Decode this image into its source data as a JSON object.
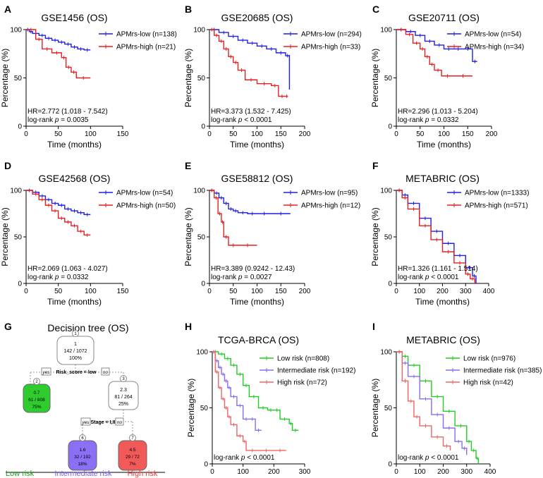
{
  "colors": {
    "low": "#1f1fe6",
    "high": "#e61f1f",
    "tcga_low": "#22cc22",
    "tcga_mid": "#8b6cf0",
    "tcga_high": "#f06464",
    "node_green": "#2ecc2e",
    "node_purple": "#8b70f5",
    "node_red": "#f25a5a",
    "node_white": "#ffffff"
  },
  "chart_data": [
    {
      "panel": "A",
      "type": "line",
      "title": "GSE1456 (OS)",
      "xlabel": "Time (months)",
      "ylabel": "Percentage (%)",
      "xlim": [
        0,
        150
      ],
      "xticks": [
        0,
        50,
        100,
        150
      ],
      "ylim": [
        0,
        100
      ],
      "yticks": [
        0,
        50,
        100
      ],
      "annotation": [
        "HR=2.772 (1.018 - 7.542)",
        "log-rank p = 0.0035"
      ],
      "series": [
        {
          "name": "APMrs-low (n=138)",
          "color": "#1f1fe6",
          "x": [
            0,
            5,
            10,
            20,
            30,
            40,
            50,
            60,
            70,
            80,
            90,
            100
          ],
          "y": [
            100,
            98,
            96,
            94,
            91,
            89,
            87,
            85,
            82,
            80,
            79,
            79
          ]
        },
        {
          "name": "APMrs-high (n=21)",
          "color": "#e61f1f",
          "x": [
            0,
            15,
            25,
            40,
            55,
            62,
            70,
            78,
            100
          ],
          "y": [
            100,
            90,
            80,
            76,
            71,
            61,
            56,
            50,
            50
          ]
        }
      ]
    },
    {
      "panel": "B",
      "type": "line",
      "title": "GSE20685 (OS)",
      "xlabel": "Time (months)",
      "ylabel": "Percentage (%)",
      "xlim": [
        0,
        200
      ],
      "xticks": [
        0,
        50,
        100,
        150,
        200
      ],
      "ylim": [
        0,
        100
      ],
      "yticks": [
        0,
        50,
        100
      ],
      "annotation": [
        "HR=3.373 (1.532 - 7.425)",
        "log-rank p < 0.0001"
      ],
      "series": [
        {
          "name": "APMrs-low (n=294)",
          "color": "#1f1fe6",
          "x": [
            0,
            20,
            40,
            60,
            80,
            100,
            120,
            140,
            160,
            168,
            168
          ],
          "y": [
            100,
            97,
            93,
            89,
            86,
            83,
            80,
            76,
            73,
            72,
            38
          ]
        },
        {
          "name": "APMrs-high (n=33)",
          "color": "#e61f1f",
          "x": [
            0,
            10,
            20,
            30,
            40,
            50,
            60,
            75,
            100,
            130,
            145,
            160,
            165
          ],
          "y": [
            100,
            94,
            88,
            80,
            72,
            66,
            58,
            48,
            44,
            42,
            31,
            31,
            31
          ]
        }
      ]
    },
    {
      "panel": "C",
      "type": "line",
      "title": "GSE20711 (OS)",
      "xlabel": "Time (months)",
      "ylabel": "Percentage (%)",
      "xlim": [
        0,
        200
      ],
      "xticks": [
        0,
        50,
        100,
        150,
        200
      ],
      "ylim": [
        0,
        100
      ],
      "yticks": [
        0,
        50,
        100
      ],
      "annotation": [
        "HR=2.296 (1.013 - 5.204)",
        "log-rank p = 0.0332"
      ],
      "series": [
        {
          "name": "APMrs-low (n=54)",
          "color": "#1f1fe6",
          "x": [
            0,
            20,
            40,
            60,
            80,
            100,
            120,
            140,
            160,
            170
          ],
          "y": [
            100,
            98,
            94,
            88,
            84,
            80,
            80,
            80,
            67,
            67
          ]
        },
        {
          "name": "APMrs-high (n=34)",
          "color": "#e61f1f",
          "x": [
            0,
            20,
            35,
            50,
            60,
            70,
            80,
            95,
            120,
            160
          ],
          "y": [
            100,
            95,
            86,
            80,
            72,
            64,
            58,
            52,
            52,
            52
          ]
        }
      ]
    },
    {
      "panel": "D",
      "type": "line",
      "title": "GSE42568 (OS)",
      "xlabel": "Time (months)",
      "ylabel": "Percentage (%)",
      "xlim": [
        0,
        150
      ],
      "xticks": [
        0,
        50,
        100,
        150
      ],
      "ylim": [
        0,
        100
      ],
      "yticks": [
        0,
        50,
        100
      ],
      "annotation": [
        "HR=2.069 (1.063 - 4.027)",
        "log-rank p = 0.0332"
      ],
      "series": [
        {
          "name": "APMrs-low (n=54)",
          "color": "#1f1fe6",
          "x": [
            0,
            10,
            20,
            30,
            40,
            50,
            60,
            70,
            80,
            90,
            100
          ],
          "y": [
            100,
            98,
            94,
            90,
            86,
            84,
            80,
            78,
            76,
            74,
            74
          ]
        },
        {
          "name": "APMrs-high (n=50)",
          "color": "#e61f1f",
          "x": [
            0,
            10,
            20,
            30,
            40,
            50,
            60,
            70,
            80,
            90,
            100
          ],
          "y": [
            100,
            96,
            90,
            84,
            78,
            70,
            66,
            62,
            56,
            52,
            52
          ]
        }
      ]
    },
    {
      "panel": "E",
      "type": "line",
      "title": "GSE58812 (OS)",
      "xlabel": "Time (months)",
      "ylabel": "Percentage (%)",
      "xlim": [
        0,
        200
      ],
      "xticks": [
        0,
        50,
        100,
        150,
        200
      ],
      "ylim": [
        0,
        100
      ],
      "yticks": [
        0,
        50,
        100
      ],
      "annotation": [
        "HR=3.389 (0.9242 - 12.43)",
        "log-rank p = 0.0027"
      ],
      "series": [
        {
          "name": "APMrs-low (n=95)",
          "color": "#1f1fe6",
          "x": [
            0,
            10,
            20,
            30,
            40,
            50,
            60,
            80,
            100,
            130,
            170
          ],
          "y": [
            100,
            97,
            92,
            86,
            80,
            78,
            76,
            75,
            75,
            75,
            75
          ]
        },
        {
          "name": "APMrs-high (n=12)",
          "color": "#e61f1f",
          "x": [
            0,
            10,
            18,
            25,
            30,
            40,
            60,
            100
          ],
          "y": [
            100,
            92,
            75,
            66,
            50,
            41,
            41,
            41
          ]
        }
      ]
    },
    {
      "panel": "F",
      "type": "line",
      "title": "METABRIC (OS)",
      "xlabel": "Time (months)",
      "ylabel": "Percentage (%)",
      "xlim": [
        0,
        400
      ],
      "xticks": [
        0,
        100,
        200,
        300,
        400
      ],
      "ylim": [
        0,
        100
      ],
      "yticks": [
        0,
        50,
        100
      ],
      "annotation": [
        "HR=1.326 (1.161 - 1.514)",
        "log-rank p < 0.0001"
      ],
      "series": [
        {
          "name": "APMrs-low (n=1333)",
          "color": "#1f1fe6",
          "x": [
            0,
            25,
            50,
            100,
            150,
            200,
            250,
            300,
            330,
            345
          ],
          "y": [
            100,
            95,
            86,
            70,
            56,
            43,
            30,
            17,
            8,
            0
          ]
        },
        {
          "name": "APMrs-high (n=571)",
          "color": "#e61f1f",
          "x": [
            0,
            25,
            50,
            100,
            150,
            200,
            250,
            300,
            320,
            340
          ],
          "y": [
            100,
            92,
            80,
            62,
            47,
            34,
            22,
            10,
            5,
            0
          ]
        }
      ]
    },
    {
      "panel": "G",
      "type": "diagram",
      "title": "Decision tree (OS)",
      "nodes": [
        {
          "id": "1",
          "lines": [
            "1",
            "142 / 1072",
            "100%"
          ],
          "badge": "1",
          "fill": "white"
        },
        {
          "id": "2",
          "lines": [
            "0.7",
            "61 / 808",
            "75%"
          ],
          "badge": "2",
          "fill": "green"
        },
        {
          "id": "3",
          "lines": [
            "2.3",
            "81 / 264",
            "25%"
          ],
          "badge": "3",
          "fill": "white"
        },
        {
          "id": "6",
          "lines": [
            "1.6",
            "32 / 192",
            "18%"
          ],
          "badge": "6",
          "fill": "purple"
        },
        {
          "id": "7",
          "lines": [
            "4.5",
            "29 / 72",
            "7%"
          ],
          "badge": "7",
          "fill": "red"
        }
      ],
      "splits": [
        {
          "yes": "yes",
          "rule": "Risk_score = low",
          "no": "no"
        },
        {
          "yes": "yes",
          "rule": "Stage = I,II",
          "no": "no"
        }
      ],
      "labels": [
        "Low risk",
        "Intermediate risk",
        "High risk"
      ]
    },
    {
      "panel": "H",
      "type": "line",
      "title": "TCGA-BRCA (OS)",
      "xlabel": "Time (months)",
      "ylabel": "Percentage (%)",
      "xlim": [
        0,
        300
      ],
      "xticks": [
        0,
        100,
        200,
        300
      ],
      "ylim": [
        0,
        100
      ],
      "yticks": [
        0,
        50,
        100
      ],
      "annotation": [
        "log-rank p < 0.0001"
      ],
      "series": [
        {
          "name": "Low risk (n=808)",
          "color": "#22cc22",
          "x": [
            0,
            20,
            40,
            60,
            80,
            100,
            120,
            150,
            180,
            200,
            220,
            250,
            260,
            280
          ],
          "y": [
            100,
            98,
            94,
            88,
            80,
            70,
            60,
            50,
            48,
            48,
            40,
            36,
            30,
            30
          ]
        },
        {
          "name": "Intermediate risk (n=192)",
          "color": "#8b6cf0",
          "x": [
            0,
            10,
            20,
            30,
            40,
            50,
            60,
            80,
            100,
            120,
            140,
            160
          ],
          "y": [
            100,
            92,
            86,
            80,
            74,
            68,
            60,
            52,
            40,
            40,
            30,
            30
          ]
        },
        {
          "name": "High risk (n=72)",
          "color": "#f06464",
          "x": [
            0,
            10,
            20,
            30,
            40,
            50,
            60,
            80,
            100,
            110,
            150,
            200,
            240
          ],
          "y": [
            100,
            82,
            68,
            58,
            50,
            42,
            35,
            25,
            20,
            12,
            12,
            12,
            12
          ]
        }
      ]
    },
    {
      "panel": "I",
      "type": "line",
      "title": "METABRIC (OS)",
      "xlabel": "Time (months)",
      "ylabel": "Percentage (%)",
      "xlim": [
        0,
        400
      ],
      "xticks": [
        0,
        100,
        200,
        300,
        400
      ],
      "ylim": [
        0,
        100
      ],
      "yticks": [
        0,
        50,
        100
      ],
      "annotation": [
        "log-rank p < 0.0001"
      ],
      "series": [
        {
          "name": "Low risk (n=976)",
          "color": "#22cc22",
          "x": [
            0,
            25,
            50,
            100,
            150,
            200,
            250,
            300,
            320,
            340,
            350
          ],
          "y": [
            100,
            96,
            88,
            74,
            60,
            47,
            34,
            20,
            12,
            5,
            0
          ]
        },
        {
          "name": "Intermediate risk (n=385)",
          "color": "#8b6cf0",
          "x": [
            0,
            25,
            50,
            100,
            150,
            200,
            250,
            280,
            300
          ],
          "y": [
            100,
            90,
            78,
            58,
            44,
            32,
            20,
            14,
            8
          ]
        },
        {
          "name": "High risk (n=42)",
          "color": "#f06464",
          "x": [
            0,
            25,
            50,
            75,
            100,
            150,
            200,
            230
          ],
          "y": [
            100,
            74,
            56,
            42,
            34,
            24,
            16,
            12
          ]
        }
      ]
    }
  ]
}
